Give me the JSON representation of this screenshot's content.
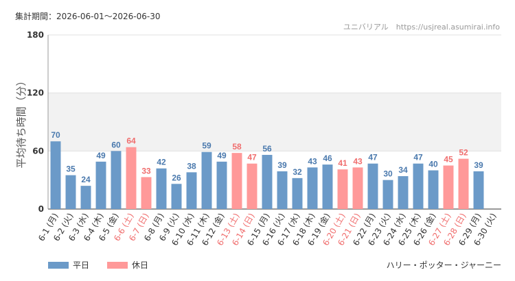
{
  "header": {
    "period": "集計期間：2026-06-01～2026-06-30",
    "site": "ユニバリアル　https://usjreal.asumirai.info"
  },
  "footer": {
    "attraction": "ハリー・ポッター・ジャーニー"
  },
  "legend": [
    {
      "label": "平日",
      "color": "#6b9ac8"
    },
    {
      "label": "休日",
      "color": "#ff9999"
    }
  ],
  "chart_data": {
    "type": "bar",
    "ylabel": "平均待ち時間（分）",
    "ylim": [
      0,
      180
    ],
    "yticks": [
      0,
      60,
      120,
      180
    ],
    "band": [
      60,
      120
    ],
    "grid": true,
    "legend_position": "bottom-left",
    "colors": {
      "weekday": "#6b9ac8",
      "holiday": "#ff9999",
      "weekday_label": "#4a79ad",
      "holiday_label": "#f06e6e"
    },
    "categories": [
      "6-1 (月)",
      "6-2 (火)",
      "6-3 (水)",
      "6-4 (木)",
      "6-5 (金)",
      "6-6 (土)",
      "6-7 (日)",
      "6-8 (月)",
      "6-9 (火)",
      "6-10 (水)",
      "6-11 (木)",
      "6-12 (金)",
      "6-13 (土)",
      "6-14 (日)",
      "6-15 (月)",
      "6-16 (火)",
      "6-17 (水)",
      "6-18 (木)",
      "6-19 (金)",
      "6-20 (土)",
      "6-21 (日)",
      "6-22 (月)",
      "6-23 (火)",
      "6-24 (水)",
      "6-25 (木)",
      "6-26 (金)",
      "6-27 (土)",
      "6-28 (日)",
      "6-29 (月)",
      "6-30 (火)"
    ],
    "values": [
      70,
      35,
      24,
      49,
      60,
      64,
      33,
      42,
      26,
      38,
      59,
      49,
      58,
      47,
      56,
      39,
      32,
      43,
      46,
      41,
      43,
      47,
      30,
      34,
      47,
      40,
      45,
      52,
      39,
      null
    ],
    "holiday": [
      false,
      false,
      false,
      false,
      false,
      true,
      true,
      false,
      false,
      false,
      false,
      false,
      true,
      true,
      false,
      false,
      false,
      false,
      false,
      true,
      true,
      false,
      false,
      false,
      false,
      false,
      true,
      true,
      false,
      false
    ]
  }
}
